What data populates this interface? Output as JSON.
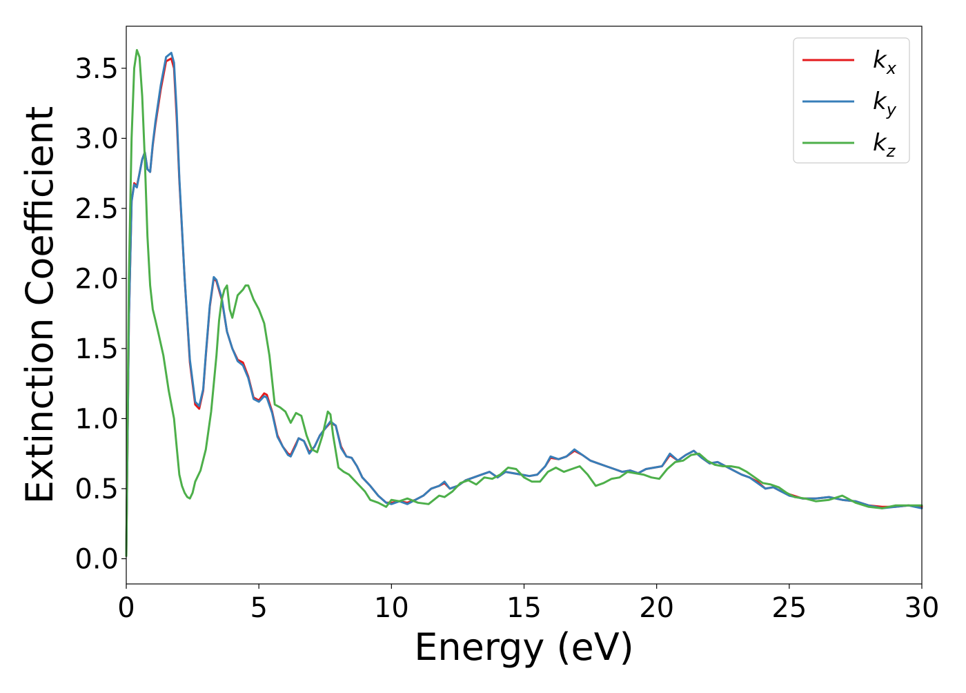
{
  "chart_data": {
    "type": "line",
    "title": "",
    "xlabel": "Energy (eV)",
    "ylabel": "Extinction Coefficient",
    "xlim": [
      0,
      30
    ],
    "ylim": [
      -0.18,
      3.8
    ],
    "xticks": [
      0,
      5,
      10,
      15,
      20,
      25,
      30
    ],
    "yticks": [
      0.0,
      0.5,
      1.0,
      1.5,
      2.0,
      2.5,
      3.0,
      3.5
    ],
    "xtick_labels": [
      "0",
      "5",
      "10",
      "15",
      "20",
      "25",
      "30"
    ],
    "ytick_labels": [
      "0.0",
      "0.5",
      "1.0",
      "1.5",
      "2.0",
      "2.5",
      "3.0",
      "3.5"
    ],
    "grid": false,
    "legend_position": "top-right",
    "series": [
      {
        "name": "k_x",
        "legend_base": "k",
        "legend_sub": "x",
        "color": "#e41a1c",
        "x": [
          0,
          0.1,
          0.2,
          0.3,
          0.4,
          0.5,
          0.6,
          0.7,
          0.8,
          0.9,
          1.0,
          1.1,
          1.3,
          1.5,
          1.7,
          1.8,
          1.9,
          2.0,
          2.2,
          2.4,
          2.6,
          2.75,
          2.9,
          3.0,
          3.15,
          3.3,
          3.4,
          3.6,
          3.8,
          4.0,
          4.2,
          4.4,
          4.6,
          4.8,
          5.0,
          5.2,
          5.3,
          5.5,
          5.7,
          5.9,
          6.1,
          6.2,
          6.4,
          6.5,
          6.7,
          6.9,
          7.1,
          7.3,
          7.5,
          7.7,
          7.9,
          8.1,
          8.3,
          8.5,
          8.7,
          8.9,
          9.2,
          9.5,
          9.8,
          10.0,
          10.3,
          10.6,
          10.9,
          11.2,
          11.5,
          11.8,
          12.0,
          12.2,
          12.5,
          12.8,
          13.1,
          13.4,
          13.7,
          14.0,
          14.3,
          14.6,
          14.9,
          15.2,
          15.5,
          15.8,
          16.0,
          16.3,
          16.6,
          16.9,
          17.2,
          17.5,
          17.8,
          18.1,
          18.4,
          18.7,
          19.0,
          19.3,
          19.6,
          19.9,
          20.2,
          20.5,
          20.8,
          21.1,
          21.4,
          21.7,
          22.0,
          22.3,
          22.6,
          22.9,
          23.2,
          23.5,
          23.8,
          24.1,
          24.4,
          24.7,
          25.0,
          25.5,
          26.0,
          26.5,
          27.0,
          27.5,
          28.0,
          28.5,
          29.0,
          29.5,
          30.0
        ],
        "values": [
          0.02,
          1.7,
          2.55,
          2.68,
          2.66,
          2.75,
          2.85,
          2.9,
          2.78,
          2.76,
          2.95,
          3.1,
          3.35,
          3.55,
          3.57,
          3.5,
          3.15,
          2.7,
          2.0,
          1.4,
          1.1,
          1.07,
          1.2,
          1.45,
          1.8,
          2.0,
          1.98,
          1.85,
          1.62,
          1.5,
          1.42,
          1.4,
          1.3,
          1.15,
          1.13,
          1.18,
          1.17,
          1.05,
          0.88,
          0.8,
          0.75,
          0.74,
          0.82,
          0.86,
          0.84,
          0.76,
          0.8,
          0.88,
          0.93,
          0.97,
          0.95,
          0.8,
          0.73,
          0.72,
          0.66,
          0.58,
          0.52,
          0.45,
          0.4,
          0.4,
          0.41,
          0.4,
          0.42,
          0.45,
          0.5,
          0.52,
          0.54,
          0.5,
          0.52,
          0.56,
          0.58,
          0.6,
          0.62,
          0.58,
          0.62,
          0.61,
          0.6,
          0.59,
          0.6,
          0.66,
          0.72,
          0.71,
          0.73,
          0.77,
          0.74,
          0.7,
          0.68,
          0.66,
          0.64,
          0.62,
          0.63,
          0.61,
          0.64,
          0.65,
          0.66,
          0.74,
          0.7,
          0.74,
          0.77,
          0.72,
          0.68,
          0.69,
          0.66,
          0.63,
          0.6,
          0.58,
          0.55,
          0.5,
          0.51,
          0.48,
          0.46,
          0.43,
          0.43,
          0.44,
          0.42,
          0.41,
          0.38,
          0.37,
          0.37,
          0.38,
          0.37
        ]
      },
      {
        "name": "k_y",
        "legend_base": "k",
        "legend_sub": "y",
        "color": "#377eb8",
        "x": [
          0,
          0.1,
          0.2,
          0.3,
          0.4,
          0.5,
          0.6,
          0.7,
          0.8,
          0.9,
          1.0,
          1.1,
          1.3,
          1.5,
          1.7,
          1.8,
          1.9,
          2.0,
          2.2,
          2.4,
          2.6,
          2.75,
          2.9,
          3.0,
          3.15,
          3.3,
          3.4,
          3.6,
          3.8,
          4.0,
          4.2,
          4.4,
          4.6,
          4.8,
          5.0,
          5.2,
          5.3,
          5.5,
          5.7,
          5.9,
          6.1,
          6.2,
          6.4,
          6.5,
          6.7,
          6.9,
          7.1,
          7.3,
          7.5,
          7.7,
          7.9,
          8.1,
          8.3,
          8.5,
          8.7,
          8.9,
          9.2,
          9.5,
          9.8,
          10.0,
          10.3,
          10.6,
          10.9,
          11.2,
          11.5,
          11.8,
          12.0,
          12.2,
          12.5,
          12.8,
          13.1,
          13.4,
          13.7,
          14.0,
          14.3,
          14.6,
          14.9,
          15.2,
          15.5,
          15.8,
          16.0,
          16.3,
          16.6,
          16.9,
          17.2,
          17.5,
          17.8,
          18.1,
          18.4,
          18.7,
          19.0,
          19.3,
          19.6,
          19.9,
          20.2,
          20.5,
          20.8,
          21.1,
          21.4,
          21.7,
          22.0,
          22.3,
          22.6,
          22.9,
          23.2,
          23.5,
          23.8,
          24.1,
          24.4,
          24.7,
          25.0,
          25.5,
          26.0,
          26.5,
          27.0,
          27.5,
          28.0,
          28.5,
          29.0,
          29.5,
          30.0
        ],
        "values": [
          0.02,
          1.7,
          2.55,
          2.67,
          2.65,
          2.75,
          2.85,
          2.9,
          2.78,
          2.76,
          2.96,
          3.12,
          3.38,
          3.58,
          3.61,
          3.54,
          3.2,
          2.72,
          2.0,
          1.42,
          1.12,
          1.09,
          1.21,
          1.46,
          1.81,
          2.01,
          1.99,
          1.86,
          1.62,
          1.5,
          1.41,
          1.38,
          1.29,
          1.14,
          1.12,
          1.16,
          1.15,
          1.04,
          0.87,
          0.8,
          0.74,
          0.73,
          0.81,
          0.86,
          0.84,
          0.75,
          0.8,
          0.88,
          0.93,
          0.98,
          0.95,
          0.79,
          0.73,
          0.72,
          0.66,
          0.58,
          0.52,
          0.45,
          0.4,
          0.39,
          0.41,
          0.39,
          0.42,
          0.45,
          0.5,
          0.52,
          0.55,
          0.5,
          0.52,
          0.56,
          0.58,
          0.6,
          0.62,
          0.58,
          0.62,
          0.61,
          0.6,
          0.59,
          0.6,
          0.66,
          0.73,
          0.71,
          0.73,
          0.78,
          0.74,
          0.7,
          0.68,
          0.66,
          0.64,
          0.62,
          0.63,
          0.61,
          0.64,
          0.65,
          0.66,
          0.75,
          0.7,
          0.74,
          0.77,
          0.72,
          0.68,
          0.69,
          0.66,
          0.63,
          0.6,
          0.58,
          0.54,
          0.5,
          0.51,
          0.48,
          0.45,
          0.43,
          0.43,
          0.44,
          0.42,
          0.41,
          0.38,
          0.36,
          0.37,
          0.38,
          0.36
        ]
      },
      {
        "name": "k_z",
        "legend_base": "k",
        "legend_sub": "z",
        "color": "#4daf4a",
        "x": [
          0,
          0.1,
          0.2,
          0.3,
          0.4,
          0.5,
          0.6,
          0.7,
          0.8,
          0.9,
          1.0,
          1.1,
          1.2,
          1.4,
          1.6,
          1.8,
          1.9,
          2.0,
          2.1,
          2.2,
          2.3,
          2.4,
          2.5,
          2.6,
          2.8,
          3.0,
          3.2,
          3.4,
          3.5,
          3.6,
          3.7,
          3.8,
          3.9,
          4.0,
          4.2,
          4.4,
          4.5,
          4.6,
          4.8,
          5.0,
          5.2,
          5.4,
          5.6,
          5.8,
          6.0,
          6.2,
          6.4,
          6.6,
          6.8,
          7.0,
          7.2,
          7.4,
          7.6,
          7.7,
          7.8,
          8.0,
          8.2,
          8.4,
          8.6,
          8.8,
          9.0,
          9.2,
          9.5,
          9.8,
          10.0,
          10.3,
          10.6,
          11.0,
          11.4,
          11.8,
          12.0,
          12.3,
          12.6,
          12.9,
          13.2,
          13.5,
          13.8,
          14.1,
          14.4,
          14.7,
          15.0,
          15.3,
          15.6,
          15.9,
          16.2,
          16.5,
          16.8,
          17.1,
          17.4,
          17.7,
          18.0,
          18.3,
          18.6,
          18.9,
          19.2,
          19.5,
          19.8,
          20.1,
          20.4,
          20.7,
          21.0,
          21.3,
          21.6,
          21.9,
          22.2,
          22.5,
          22.8,
          23.1,
          23.4,
          23.7,
          24.0,
          24.3,
          24.6,
          24.9,
          25.2,
          25.6,
          26.0,
          26.5,
          27.0,
          27.5,
          28.0,
          28.5,
          29.0,
          29.5,
          30.0
        ],
        "values": [
          0.02,
          2.0,
          3.0,
          3.5,
          3.63,
          3.58,
          3.3,
          2.85,
          2.3,
          1.95,
          1.78,
          1.7,
          1.62,
          1.45,
          1.2,
          1.0,
          0.8,
          0.6,
          0.52,
          0.47,
          0.44,
          0.43,
          0.47,
          0.55,
          0.63,
          0.78,
          1.05,
          1.45,
          1.7,
          1.85,
          1.92,
          1.95,
          1.78,
          1.72,
          1.88,
          1.92,
          1.95,
          1.95,
          1.85,
          1.78,
          1.68,
          1.45,
          1.1,
          1.08,
          1.05,
          0.97,
          1.04,
          1.02,
          0.88,
          0.78,
          0.76,
          0.88,
          1.05,
          1.03,
          0.88,
          0.65,
          0.62,
          0.6,
          0.56,
          0.52,
          0.48,
          0.42,
          0.4,
          0.37,
          0.42,
          0.41,
          0.43,
          0.4,
          0.39,
          0.45,
          0.44,
          0.48,
          0.54,
          0.56,
          0.53,
          0.58,
          0.57,
          0.6,
          0.65,
          0.64,
          0.58,
          0.55,
          0.55,
          0.62,
          0.65,
          0.62,
          0.64,
          0.66,
          0.6,
          0.52,
          0.54,
          0.57,
          0.58,
          0.62,
          0.61,
          0.6,
          0.58,
          0.57,
          0.64,
          0.69,
          0.7,
          0.74,
          0.75,
          0.7,
          0.67,
          0.66,
          0.66,
          0.65,
          0.62,
          0.58,
          0.54,
          0.53,
          0.51,
          0.47,
          0.44,
          0.43,
          0.41,
          0.42,
          0.45,
          0.4,
          0.37,
          0.36,
          0.38,
          0.38,
          0.38
        ]
      }
    ]
  }
}
